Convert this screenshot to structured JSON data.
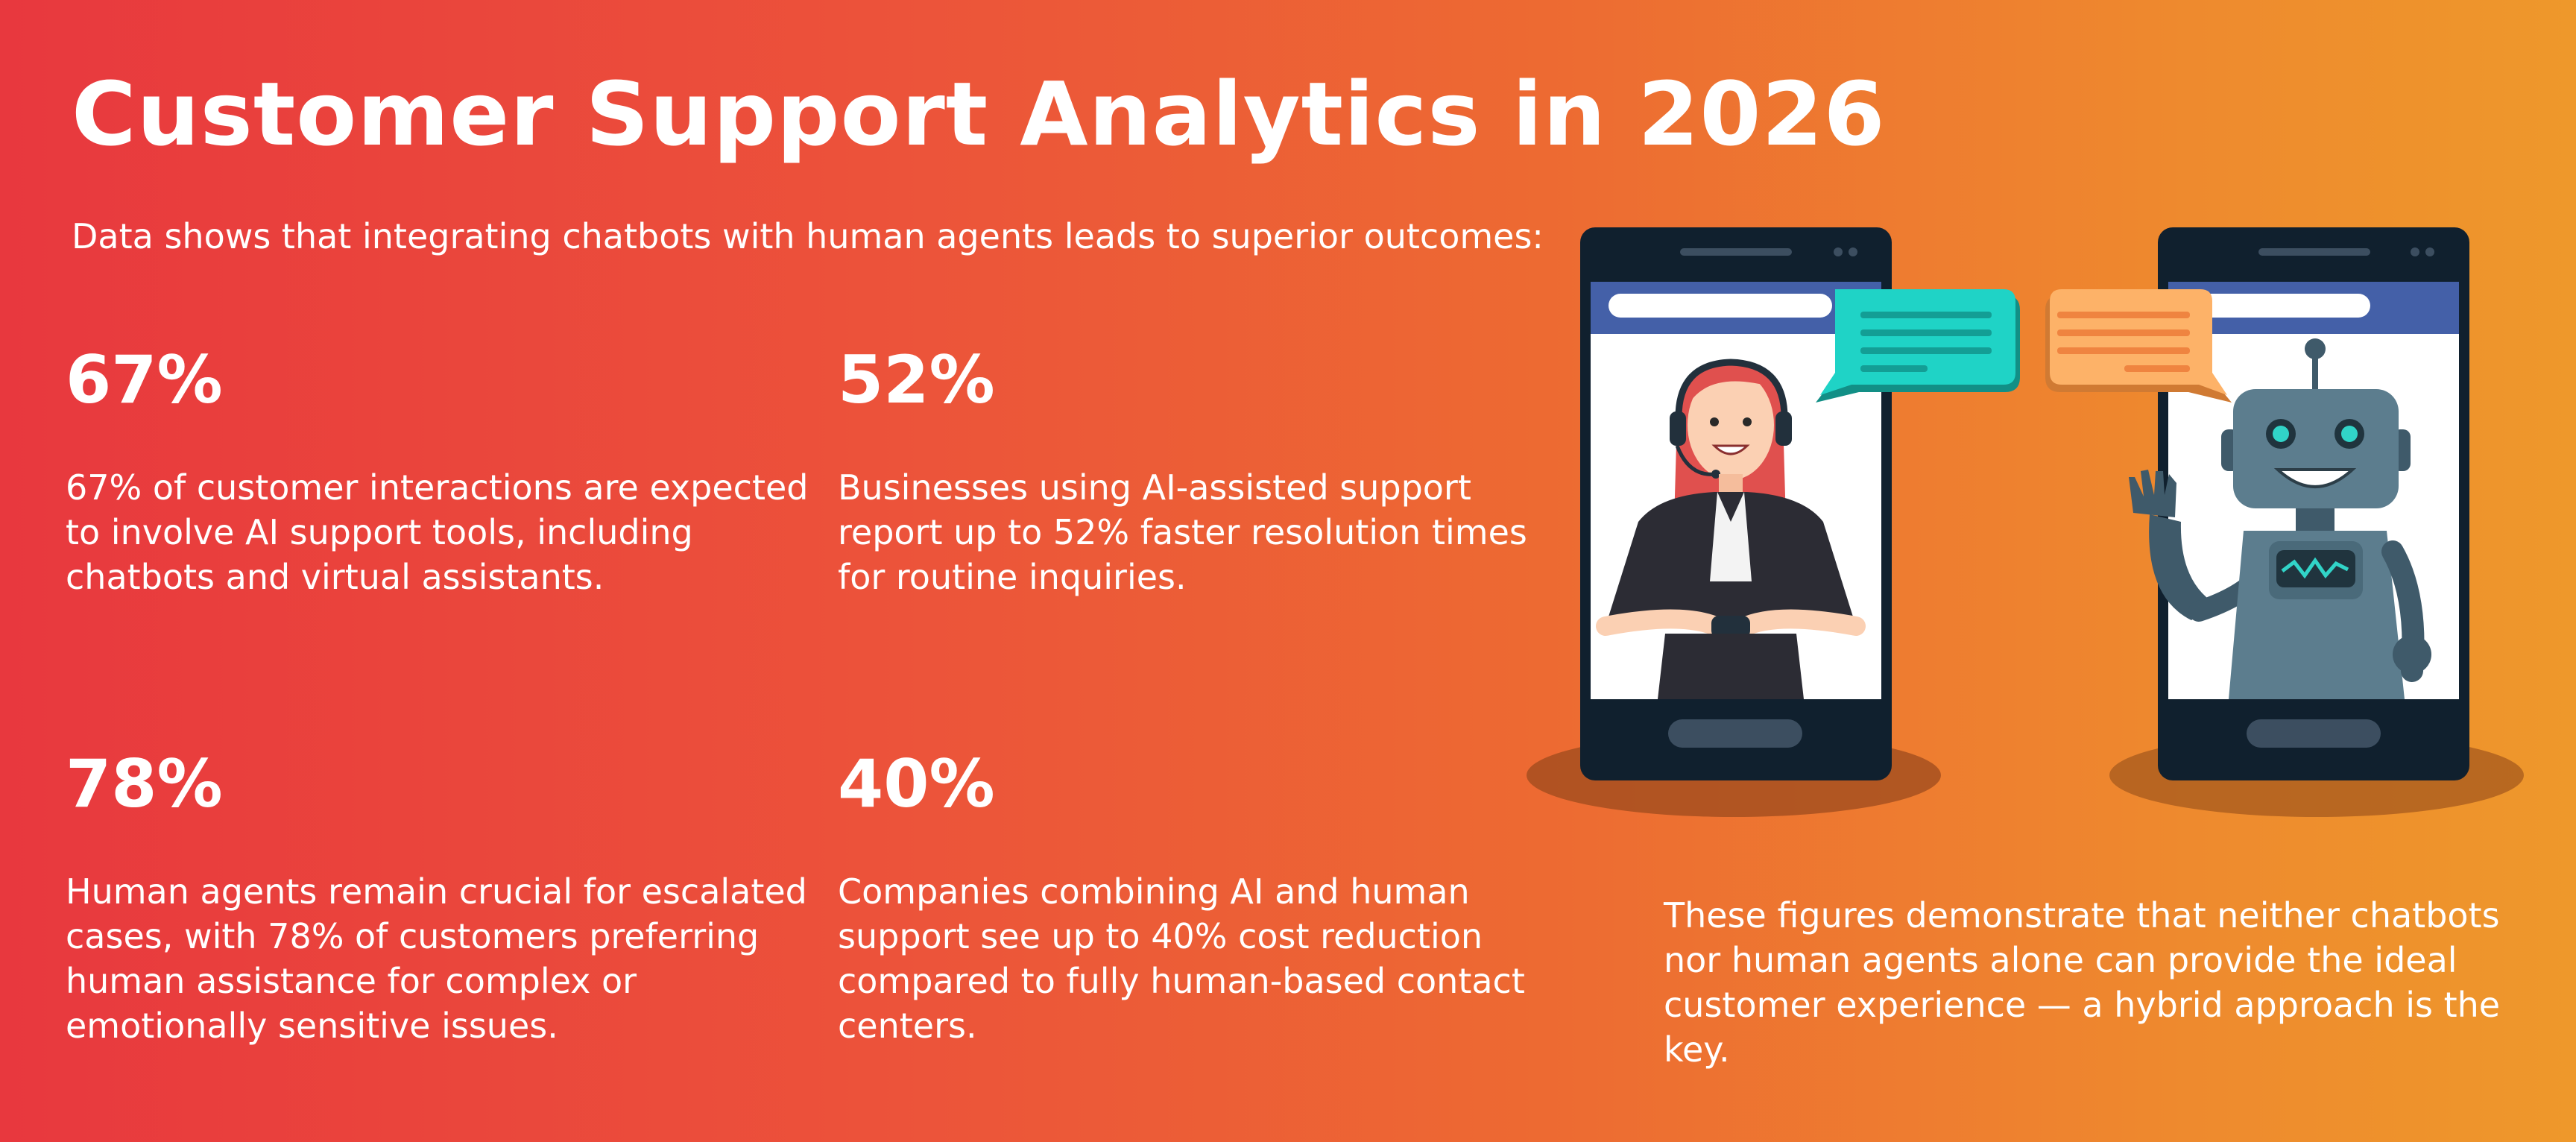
{
  "header": {
    "title": "Customer Support Analytics in 2026",
    "subtitle": "Data shows that integrating chatbots with human agents leads to superior outcomes:"
  },
  "stats": [
    {
      "value": "67%",
      "description": "67% of customer interactions are expected to involve AI support tools, including chatbots and virtual assistants."
    },
    {
      "value": "52%",
      "description": "Businesses using AI-assisted support report up to 52% faster resolution times for routine inquiries."
    },
    {
      "value": "78%",
      "description": "Human agents remain crucial for escalated cases, with 78% of customers preferring human assistance for complex or emotionally sensitive issues."
    },
    {
      "value": "40%",
      "description": "Companies combining AI and human support see up to 40% cost reduction compared to fully human-based contact centers."
    }
  ],
  "conclusion": "These figures demonstrate that neither chatbots nor human agents alone can provide the ideal customer experience — a hybrid approach is the key.",
  "colors": {
    "gradient_start": "#e8383e",
    "gradient_end": "#ee982b",
    "phone_body": "#10202e",
    "screen_header": "#4460a8",
    "human_bubble": "#1fd3c6",
    "robot_bubble": "#fdb268",
    "robot_body": "#567888"
  },
  "icons": [
    "smartphone-human-agent",
    "smartphone-robot",
    "chat-bubble-teal",
    "chat-bubble-orange",
    "support-agent-avatar",
    "robot-avatar"
  ]
}
